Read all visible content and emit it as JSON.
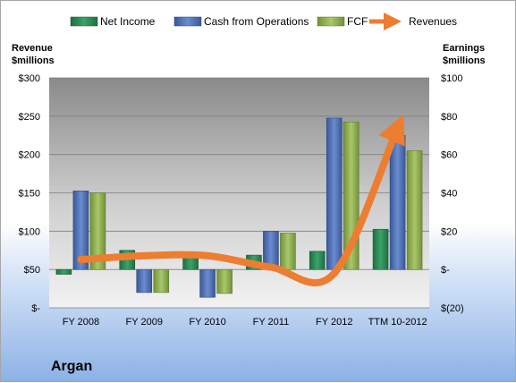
{
  "chart_data": {
    "type": "bar",
    "title": "Argan",
    "legend": [
      "Net Income",
      "Cash from Operations",
      "FCF",
      "Revenues"
    ],
    "legend_position": "top",
    "categories": [
      "FY 2008",
      "FY 2009",
      "FY 2010",
      "FY 2011",
      "FY 2012",
      "TTM 10-2012"
    ],
    "series": [
      {
        "name": "Net Income",
        "axis": "right",
        "color": "#2e8b57",
        "values": [
          -2.5,
          10,
          6.5,
          7.5,
          9.5,
          21
        ]
      },
      {
        "name": "Cash from Operations",
        "axis": "right",
        "color": "#4f6fb0",
        "values": [
          41,
          -12,
          -14.5,
          20,
          79,
          70
        ]
      },
      {
        "name": "FCF",
        "axis": "right",
        "color": "#8fae4e",
        "values": [
          40,
          -12,
          -12.5,
          19,
          77,
          62
        ]
      },
      {
        "name": "Revenues",
        "axis": "left",
        "type": "line",
        "color": "#ed7d31",
        "values": [
          63,
          68,
          68,
          53,
          45,
          235
        ]
      }
    ],
    "ylabel_left": "Revenue\n$millions",
    "ylabel_right": "Earnings\n$millions",
    "ylim_left": [
      0,
      300
    ],
    "ylim_right": [
      -20,
      100
    ],
    "yticks_left": [
      "$300",
      "$250",
      "$200",
      "$150",
      "$100",
      "$50",
      "$-"
    ],
    "yticks_right": [
      "$100",
      "$80",
      "$60",
      "$40",
      "$20",
      "$-",
      "$(20)"
    ],
    "grid": true
  },
  "colors": {
    "net_income": "#2e8b57",
    "cash_ops": "#4f6fb0",
    "fcf": "#8fae4e",
    "revenues": "#ed7d31"
  }
}
